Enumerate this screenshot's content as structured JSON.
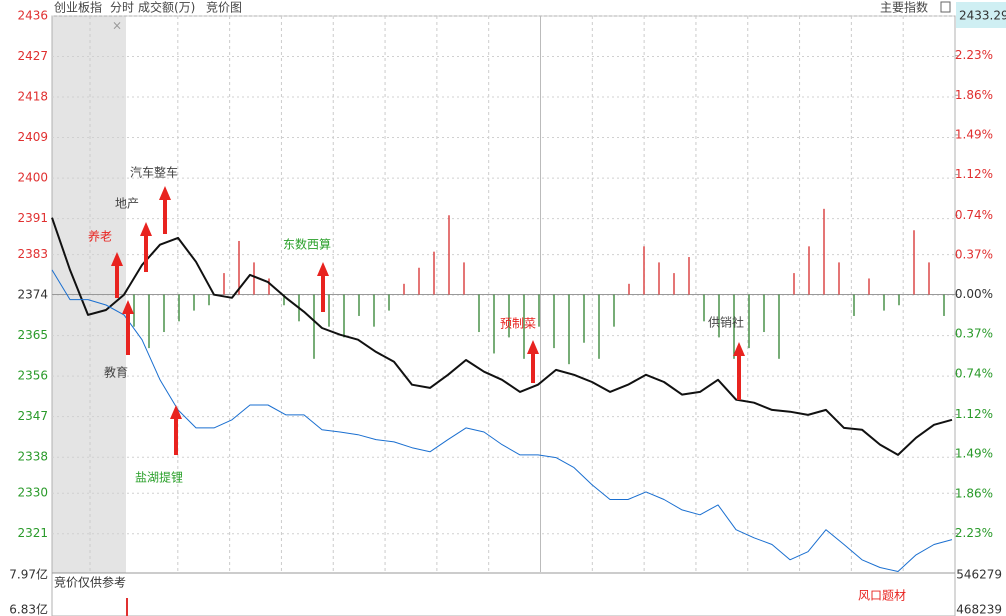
{
  "header": {
    "title": "创业板指",
    "tabs": [
      "分时",
      "成交额(万)",
      "竞价图"
    ],
    "menu": "主要指数",
    "current_price": 2433.29
  },
  "chart_data": {
    "type": "line",
    "ylim": [
      2312.5,
      2436
    ],
    "yticks": [
      2436,
      2427,
      2418,
      2409,
      2400,
      2391,
      2383,
      2374,
      2365,
      2356,
      2347,
      2338,
      2330,
      2321
    ],
    "y2lim": [
      -2.59,
      2.6
    ],
    "y2ticks": [
      {
        "value": 2.23,
        "label": "2.23%"
      },
      {
        "value": 1.86,
        "label": "1.86%"
      },
      {
        "value": 1.49,
        "label": "1.49%"
      },
      {
        "value": 1.12,
        "label": "1.12%"
      },
      {
        "value": 0.74,
        "label": "0.74%"
      },
      {
        "value": 0.37,
        "label": "0.37%"
      },
      {
        "value": 0,
        "label": "0.00%"
      },
      {
        "value": -0.37,
        "label": "0.37%"
      },
      {
        "value": -0.74,
        "label": "0.74%"
      },
      {
        "value": -1.12,
        "label": "1.12%"
      },
      {
        "value": -1.49,
        "label": "1.49%"
      },
      {
        "value": -1.86,
        "label": "1.86%"
      },
      {
        "value": -2.23,
        "label": "2.23%"
      }
    ],
    "grid": true,
    "axis_colors": {
      "up": "#e03030",
      "down": "#2a9a2a",
      "flat": "#333333"
    },
    "series": [
      {
        "color": "#111111",
        "values": [
          2391.2,
          2379.6,
          2369.6,
          2370.7,
          2374.1,
          2380.7,
          2385.2,
          2386.7,
          2381.4,
          2374.1,
          2373.4,
          2378.5,
          2376.9,
          2373.4,
          2370.3,
          2366.7,
          2365.2,
          2364.1,
          2361.4,
          2359.2,
          2354.1,
          2353.4,
          2356.3,
          2359.6,
          2357.0,
          2355.2,
          2352.5,
          2354.1,
          2357.4,
          2356.3,
          2354.7,
          2352.5,
          2354.1,
          2356.3,
          2354.7,
          2351.9,
          2352.5,
          2355.2,
          2350.8,
          2350.1,
          2348.5,
          2348.1,
          2347.4,
          2348.5,
          2344.5,
          2344.1,
          2340.8,
          2338.5,
          2342.3,
          2345.2,
          2346.3
        ]
      },
      {
        "color": "#1a6fd0",
        "values": [
          2379.6,
          2373.0,
          2373.0,
          2371.8,
          2369.6,
          2364.1,
          2355.2,
          2348.5,
          2344.5,
          2344.5,
          2346.3,
          2349.6,
          2349.6,
          2347.4,
          2347.4,
          2344.1,
          2343.6,
          2343.0,
          2341.9,
          2341.4,
          2340.1,
          2339.2,
          2341.9,
          2344.5,
          2343.6,
          2340.8,
          2338.5,
          2338.5,
          2337.9,
          2335.7,
          2331.9,
          2328.6,
          2328.6,
          2330.3,
          2328.6,
          2326.3,
          2325.2,
          2327.4,
          2321.9,
          2320.1,
          2318.6,
          2315.2,
          2317.0,
          2321.9,
          2318.6,
          2315.2,
          2313.5,
          2312.6,
          2316.3,
          2318.6,
          2319.7
        ]
      },
      {
        "type": "bar",
        "axis": "y2",
        "colors": {
          "up": "#d83a3a",
          "down": "#3d8a3d"
        },
        "values": [
          -0.3,
          -0.5,
          -0.35,
          -0.25,
          -0.15,
          -0.1,
          0.2,
          0.5,
          0.3,
          0.15,
          -0.1,
          -0.25,
          -0.6,
          -0.3,
          -0.4,
          -0.2,
          -0.3,
          -0.15,
          0.1,
          0.25,
          0.4,
          0.74,
          0.3,
          -0.35,
          -0.55,
          -0.4,
          -0.6,
          -0.3,
          -0.5,
          -0.65,
          -0.45,
          -0.6,
          -0.3,
          0.1,
          0.45,
          0.3,
          0.2,
          0.35,
          -0.25,
          -0.4,
          -0.6,
          -0.5,
          -0.35,
          -0.6,
          0.2,
          0.45,
          0.8,
          0.3,
          -0.2,
          0.15,
          -0.15,
          -0.1,
          0.6,
          0.3,
          -0.2
        ]
      }
    ],
    "annotations": [
      {
        "text": "养老",
        "color": "#e8231f"
      },
      {
        "text": "地产",
        "color": "#444444"
      },
      {
        "text": "汽车整车",
        "color": "#444444"
      },
      {
        "text": "东数西算",
        "color": "#2aa02a"
      },
      {
        "text": "教育",
        "color": "#444444"
      },
      {
        "text": "盐湖提锂",
        "color": "#2aa02a"
      },
      {
        "text": "预制菜",
        "color": "#e8231f"
      },
      {
        "text": "供销社",
        "color": "#444444"
      },
      {
        "text": "风口题材",
        "color": "#e8231f"
      }
    ]
  },
  "volume_panel": {
    "label": "竞价仅供参考",
    "left_ticks": [
      "7.97亿",
      "6.83亿"
    ],
    "right_ticks": [
      546279,
      468239
    ]
  }
}
